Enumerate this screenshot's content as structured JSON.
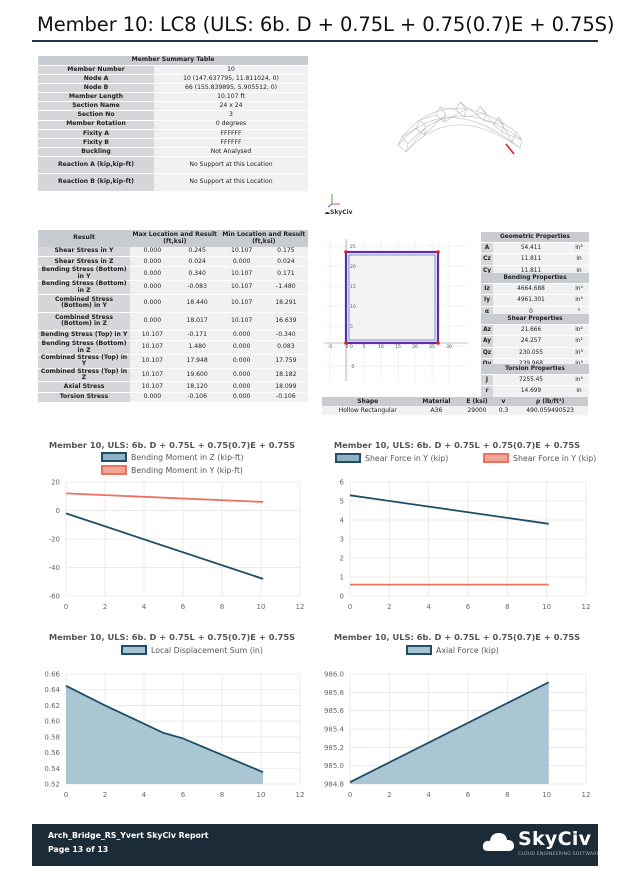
{
  "title": "Member 10: LC8 (ULS: 6b. D + 0.75L + 0.75(0.7)E + 0.75S)",
  "summary": {
    "caption": "Member Summary Table",
    "rows": [
      {
        "k": "Member Number",
        "v": "10"
      },
      {
        "k": "Node A",
        "v": "10 (147.637795, 11.811024, 0)"
      },
      {
        "k": "Node B",
        "v": "66 (155.839895, 5.905512, 0)"
      },
      {
        "k": "Member Length",
        "v": "10.107 ft"
      },
      {
        "k": "Section Name",
        "v": "24 x 24"
      },
      {
        "k": "Section No",
        "v": "3"
      },
      {
        "k": "Member Rotation",
        "v": "0 degrees"
      },
      {
        "k": "Fixity A",
        "v": "FFFFFF"
      },
      {
        "k": "Fixity B",
        "v": "FFFFFF"
      },
      {
        "k": "Buckling",
        "v": "Not Analysed"
      },
      {
        "k": "Reaction A (kip,kip-ft)",
        "v": "No Support at this Location"
      },
      {
        "k": "Reaction B (kip,kip-ft)",
        "v": "No Support at this Location"
      }
    ]
  },
  "skyciv_small_logo": "SkyCiv",
  "results": {
    "headers": [
      "Result",
      "Max Location and Result (ft,ksi)",
      "Min Location and Result (ft,ksi)"
    ],
    "rows": [
      [
        "Shear Stress in Y",
        "0.000",
        "0.245",
        "10.107",
        "0.175"
      ],
      [
        "Shear Stress in Z",
        "0.000",
        "0.024",
        "0.000",
        "0.024"
      ],
      [
        "Bending Stress (Bottom) in Y",
        "0.000",
        "0.340",
        "10.107",
        "0.171"
      ],
      [
        "Bending Stress (Bottom) in Z",
        "0.000",
        "-0.083",
        "10.107",
        "-1.480"
      ],
      [
        "Combined Stress (Bottom) in Y",
        "0.000",
        "18.440",
        "10.107",
        "18.291"
      ],
      [
        "Combined Stress (Bottom) in Z",
        "0.000",
        "18.017",
        "10.107",
        "16.639"
      ],
      [
        "Bending Stress (Top) in Y",
        "10.107",
        "-0.171",
        "0.000",
        "-0.340"
      ],
      [
        "Bending Stress (Bottom) in Z",
        "10.107",
        "1.480",
        "0.000",
        "0.083"
      ],
      [
        "Combined Stress (Top) in Y",
        "10.107",
        "17.948",
        "0.000",
        "17.759"
      ],
      [
        "Combined Stress (Top) in Z",
        "10.107",
        "19.600",
        "0.000",
        "18.182"
      ],
      [
        "Axial Stress",
        "10.107",
        "18.120",
        "0.000",
        "18.099"
      ],
      [
        "Torsion Stress",
        "0.000",
        "-0.106",
        "0.000",
        "-0.106"
      ]
    ]
  },
  "section_plot": {
    "x_ticks": [
      "-5",
      "0",
      "5",
      "10",
      "15",
      "20",
      "25",
      "30"
    ],
    "y_ticks": [
      "25",
      "20",
      "15",
      "10",
      "5",
      "0",
      "-5"
    ]
  },
  "geometric": {
    "caption": "Geometric Properties",
    "rows": [
      {
        "s": "A",
        "v": "54.411",
        "u": "in²"
      },
      {
        "s": "Cz",
        "v": "11.811",
        "u": "in"
      },
      {
        "s": "Cy",
        "v": "11.811",
        "u": "in"
      }
    ]
  },
  "bending": {
    "caption": "Bending Properties",
    "rows": [
      {
        "s": "Iz",
        "v": "4664.688",
        "u": "in⁴"
      },
      {
        "s": "Iy",
        "v": "4961.301",
        "u": "in⁴"
      },
      {
        "s": "α",
        "v": "0",
        "u": "°"
      }
    ]
  },
  "shear": {
    "caption": "Shear Properties",
    "rows": [
      {
        "s": "Az",
        "v": "21.666",
        "u": "in²"
      },
      {
        "s": "Ay",
        "v": "24.257",
        "u": "in²"
      },
      {
        "s": "Qz",
        "v": "230.055",
        "u": "in³"
      },
      {
        "s": "Qy",
        "v": "239.968",
        "u": "in³"
      }
    ]
  },
  "torsion": {
    "caption": "Torsion Properties",
    "rows": [
      {
        "s": "J",
        "v": "7255.45",
        "u": "in⁴"
      },
      {
        "s": "r",
        "v": "14.699",
        "u": "in"
      }
    ]
  },
  "shape_table": {
    "headers": [
      "Shape",
      "Material",
      "E (ksi)",
      "v",
      "ρ (lb/ft³)"
    ],
    "row": [
      "Hollow Rectangular",
      "A36",
      "29000",
      "0.3",
      "490.059490523"
    ]
  },
  "colors": {
    "dark_series": "#1f4e68",
    "orange_series": "#e8735e",
    "area_fill": "#a7c3d1",
    "footer_bg": "#1c2b38"
  },
  "chart_data": [
    {
      "type": "line",
      "title": "Member 10, ULS: 6b. D + 0.75L + 0.75(0.7)E + 0.75S",
      "series": [
        {
          "name": "Bending Moment in Z (kip-ft)",
          "color": "#1f4e68",
          "x": [
            0,
            10.107
          ],
          "y": [
            -2,
            -48
          ]
        },
        {
          "name": "Bending Moment in Y (kip-ft)",
          "color": "#e8735e",
          "x": [
            0,
            10.107
          ],
          "y": [
            12,
            6
          ]
        }
      ],
      "xlim": [
        0,
        12
      ],
      "ylim": [
        -60,
        20
      ],
      "x_ticks": [
        0,
        2,
        4,
        6,
        8,
        10,
        12
      ],
      "y_ticks": [
        20,
        0,
        -20,
        -40,
        -60
      ],
      "grid": true,
      "legend": "top"
    },
    {
      "type": "line",
      "title": "Member 10, ULS: 6b. D + 0.75L + 0.75(0.7)E + 0.75S",
      "series": [
        {
          "name": "Shear Force in Y (kip)",
          "color": "#1f4e68",
          "x": [
            0,
            10.107
          ],
          "y": [
            5.3,
            3.8
          ]
        },
        {
          "name": "Shear Force in Y (kip)",
          "color": "#e8735e",
          "x": [
            0,
            10.107
          ],
          "y": [
            0.6,
            0.6
          ]
        }
      ],
      "xlim": [
        0,
        12
      ],
      "ylim": [
        0,
        6
      ],
      "x_ticks": [
        0,
        2,
        4,
        6,
        8,
        10,
        12
      ],
      "y_ticks": [
        0,
        1,
        2,
        3,
        4,
        5,
        6
      ],
      "grid": true,
      "legend": "top"
    },
    {
      "type": "area",
      "title": "Member 10, ULS: 6b. D + 0.75L + 0.75(0.7)E + 0.75S",
      "series": [
        {
          "name": "Local Displacement Sum (in)",
          "color": "#1f4e68",
          "x": [
            0,
            2,
            5,
            6,
            10.107
          ],
          "y": [
            0.645,
            0.62,
            0.585,
            0.578,
            0.535
          ]
        }
      ],
      "xlim": [
        0,
        12
      ],
      "ylim": [
        0.52,
        0.66
      ],
      "x_ticks": [
        0,
        2,
        4,
        6,
        8,
        10,
        12
      ],
      "y_ticks": [
        "0.66",
        "0.64",
        "0.62",
        "0.60",
        "0.58",
        "0.56",
        "0.54",
        "0.52"
      ],
      "grid": true,
      "legend": "top"
    },
    {
      "type": "area",
      "title": "Member 10, ULS: 6b. D + 0.75L + 0.75(0.7)E + 0.75S",
      "series": [
        {
          "name": "Axial Force (kip)",
          "color": "#1f4e68",
          "x": [
            0,
            10.107
          ],
          "y": [
            984.82,
            985.91
          ]
        }
      ],
      "xlim": [
        0,
        12
      ],
      "ylim": [
        984.8,
        986.0
      ],
      "x_ticks": [
        0,
        2,
        4,
        6,
        8,
        10,
        12
      ],
      "y_ticks": [
        "986.0",
        "985.8",
        "985.6",
        "985.4",
        "985.2",
        "985.0",
        "984.8"
      ],
      "grid": true,
      "legend": "top"
    }
  ],
  "footer": {
    "report_name": "Arch_Bridge_RS_Yvert SkyCiv Report",
    "page": "Page 13 of 13",
    "brand": "SkyCiv",
    "tagline": "CLOUD ENGINEERING SOFTWARE"
  }
}
